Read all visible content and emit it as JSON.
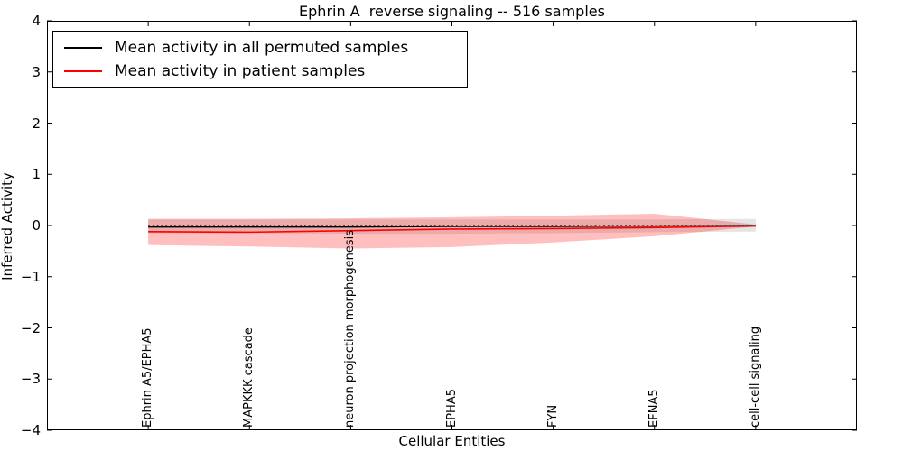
{
  "title": "Ephrin A  reverse signaling -- 516 samples",
  "axes": {
    "xlabel": "Cellular Entities",
    "ylabel": "Inferred Activity",
    "yticks": [
      {
        "value": 4,
        "label": "4"
      },
      {
        "value": 3,
        "label": "3"
      },
      {
        "value": 2,
        "label": "2"
      },
      {
        "value": 1,
        "label": "1"
      },
      {
        "value": 0,
        "label": "0"
      },
      {
        "value": -1,
        "label": "−1"
      },
      {
        "value": -2,
        "label": "−2"
      },
      {
        "value": -3,
        "label": "−3"
      },
      {
        "value": -4,
        "label": "−4"
      }
    ]
  },
  "legend": {
    "items": [
      {
        "label": "Mean activity in all permuted samples",
        "color": "#000000"
      },
      {
        "label": "Mean activity in patient samples",
        "color": "#ff0000"
      }
    ]
  },
  "chart_data": {
    "type": "line",
    "title": "Ephrin A  reverse signaling -- 516 samples",
    "xlabel": "Cellular Entities",
    "ylabel": "Inferred Activity",
    "ylim": [
      -4,
      4
    ],
    "grid": false,
    "legend_position": "upper left",
    "categories": [
      "Ephrin A5/EPHA5",
      "MAPKKK cascade",
      "neuron projection morphogenesis",
      "EPHA5",
      "FYN",
      "EFNA5",
      "cell-cell signaling"
    ],
    "baseline": {
      "value": 0,
      "color": "#000000",
      "style": "dotted"
    },
    "series": [
      {
        "name": "Mean activity in all permuted samples",
        "color": "#000000",
        "line_width": 1.3,
        "values": [
          -0.03,
          -0.03,
          -0.03,
          -0.02,
          -0.02,
          -0.01,
          0.0
        ],
        "band": {
          "upper": [
            0.12,
            0.12,
            0.12,
            0.12,
            0.12,
            0.12,
            0.13
          ],
          "lower": [
            -0.15,
            -0.15,
            -0.16,
            -0.16,
            -0.15,
            -0.13,
            -0.12
          ],
          "color": "rgba(0,0,0,0.10)"
        }
      },
      {
        "name": "Mean activity in patient samples",
        "color": "#ff0000",
        "line_width": 1.6,
        "values": [
          -0.12,
          -0.13,
          -0.1,
          -0.07,
          -0.06,
          -0.04,
          -0.01
        ],
        "band": {
          "upper": [
            0.13,
            0.13,
            0.14,
            0.16,
            0.19,
            0.23,
            0.02
          ],
          "lower": [
            -0.38,
            -0.41,
            -0.45,
            -0.42,
            -0.33,
            -0.21,
            -0.02
          ],
          "color": "rgba(255,0,0,0.25)"
        }
      }
    ]
  }
}
